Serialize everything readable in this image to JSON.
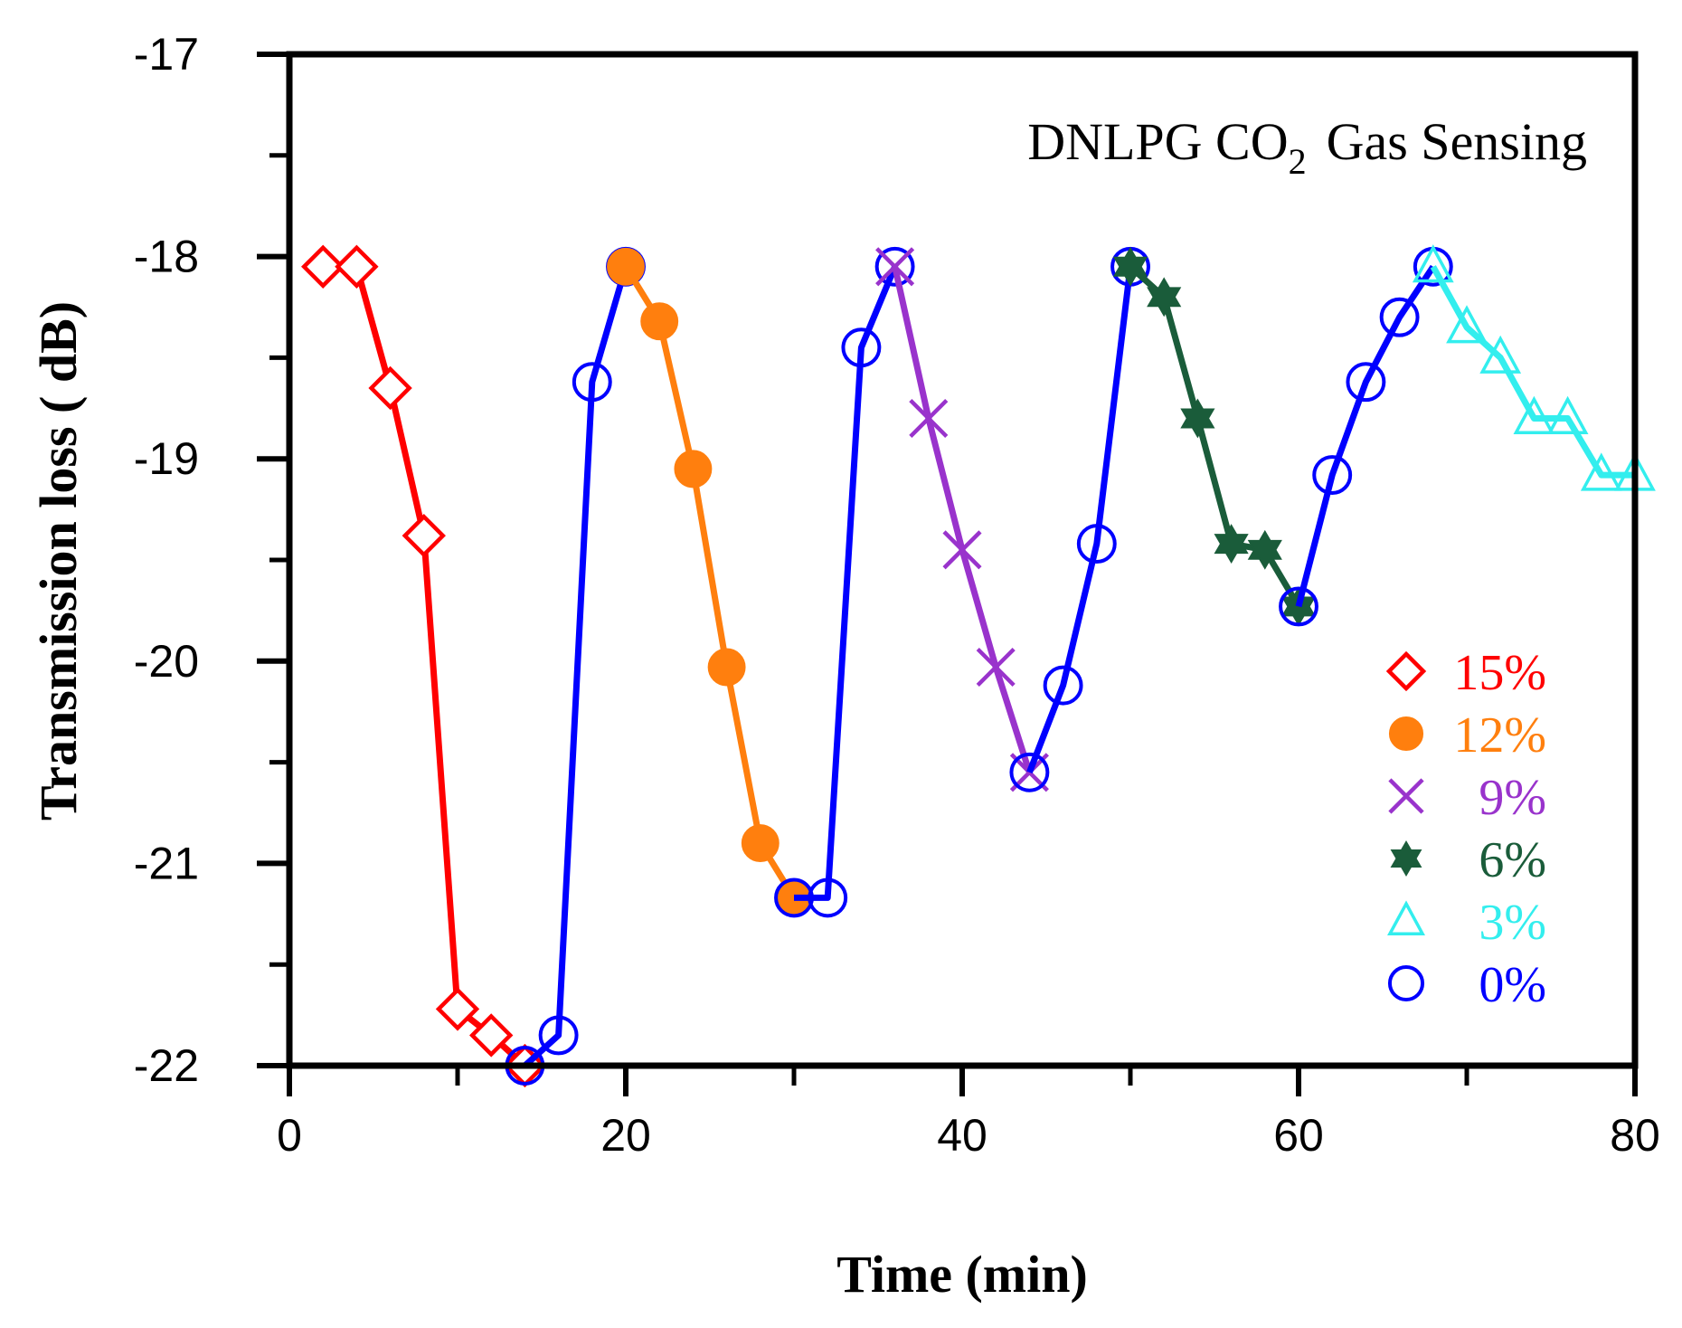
{
  "chart_data": {
    "type": "line",
    "title": "DNLPG CO",
    "title_subscript": "2",
    "title_suffix": "Gas Sensing",
    "xlabel": "Time (min)",
    "ylabel": "Transmission loss ( dB)",
    "xlim": [
      0,
      80
    ],
    "ylim": [
      -22,
      -17
    ],
    "x_ticks": [
      0,
      20,
      40,
      60,
      80
    ],
    "y_ticks": [
      -17,
      -18,
      -19,
      -20,
      -21,
      -22
    ],
    "x_tick_labels": [
      "0",
      "20",
      "40",
      "60",
      "80"
    ],
    "y_tick_labels": [
      "-17",
      "-18",
      "-19",
      "-20",
      "-21",
      "-22"
    ],
    "grid": false,
    "legend_position": "bottom-right",
    "series": [
      {
        "name": "15%",
        "color": "#ff0000",
        "marker": "diamond-open",
        "x": [
          2,
          4,
          6,
          8,
          10,
          12,
          14
        ],
        "y": [
          -18.05,
          -18.05,
          -18.65,
          -19.38,
          -21.72,
          -21.85,
          -22.0
        ]
      },
      {
        "name": "0%",
        "color": "#0000ff",
        "marker": "circle-open",
        "x": [
          14,
          16,
          18,
          20
        ],
        "y": [
          -22.0,
          -21.85,
          -18.62,
          -18.05
        ]
      },
      {
        "name": "12%",
        "color": "#ff7f0e",
        "marker": "circle-filled",
        "x": [
          20,
          22,
          24,
          26,
          28,
          30
        ],
        "y": [
          -18.05,
          -18.32,
          -19.05,
          -20.03,
          -20.9,
          -21.17
        ]
      },
      {
        "name": "0%",
        "color": "#0000ff",
        "marker": "circle-open",
        "x": [
          30,
          32,
          34,
          36
        ],
        "y": [
          -21.17,
          -21.17,
          -18.45,
          -18.05
        ]
      },
      {
        "name": "9%",
        "color": "#9933cc",
        "marker": "x",
        "x": [
          36,
          38,
          40,
          42,
          44
        ],
        "y": [
          -18.05,
          -18.8,
          -19.45,
          -20.03,
          -20.55
        ]
      },
      {
        "name": "0%",
        "color": "#0000ff",
        "marker": "circle-open",
        "x": [
          44,
          46,
          48,
          50
        ],
        "y": [
          -20.55,
          -20.12,
          -19.42,
          -18.05
        ]
      },
      {
        "name": "6%",
        "color": "#1a5c3a",
        "marker": "star",
        "x": [
          50,
          52,
          54,
          56,
          58,
          60
        ],
        "y": [
          -18.05,
          -18.2,
          -18.8,
          -19.42,
          -19.45,
          -19.73
        ]
      },
      {
        "name": "0%",
        "color": "#0000ff",
        "marker": "circle-open",
        "x": [
          60,
          62,
          64,
          66,
          68
        ],
        "y": [
          -19.73,
          -19.08,
          -18.62,
          -18.3,
          -18.05
        ]
      },
      {
        "name": "3%",
        "color": "#33eeee",
        "marker": "triangle-open",
        "x": [
          68,
          70,
          72,
          74,
          76,
          78,
          80
        ],
        "y": [
          -18.05,
          -18.35,
          -18.5,
          -18.8,
          -18.8,
          -19.08,
          -19.08
        ]
      }
    ],
    "legend": [
      {
        "label": "15%",
        "color": "#ff0000",
        "marker": "diamond-open"
      },
      {
        "label": "12%",
        "color": "#ff7f0e",
        "marker": "circle-filled"
      },
      {
        "label": "9%",
        "color": "#9933cc",
        "marker": "x"
      },
      {
        "label": "6%",
        "color": "#1a5c3a",
        "marker": "star"
      },
      {
        "label": "3%",
        "color": "#33eeee",
        "marker": "triangle-open"
      },
      {
        "label": "0%",
        "color": "#0000ff",
        "marker": "circle-open"
      }
    ]
  }
}
